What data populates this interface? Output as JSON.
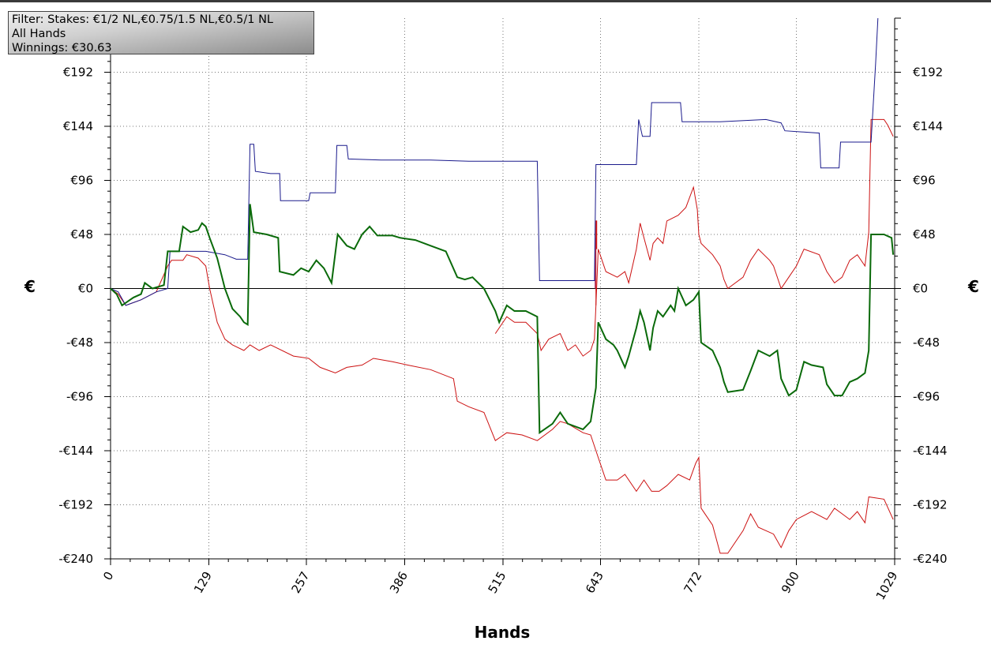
{
  "filter_box": {
    "line1": "Filter: Stakes: €1/2 NL,€0.75/1.5 NL,€0.5/1 NL",
    "line2": "All Hands",
    "line3": "Winnings: €30.63"
  },
  "chart_data": {
    "type": "line",
    "xlabel": "Hands",
    "ylabel": "€",
    "xlim": [
      0,
      1029
    ],
    "ylim": [
      -240,
      240
    ],
    "x_ticks": [
      "0",
      "129",
      "257",
      "386",
      "515",
      "643",
      "772",
      "900",
      "1029"
    ],
    "y_ticks": [
      {
        "value": 192,
        "label": "€192"
      },
      {
        "value": 144,
        "label": "€144"
      },
      {
        "value": 96,
        "label": "€96"
      },
      {
        "value": 48,
        "label": "€48"
      },
      {
        "value": 0,
        "label": "€0"
      },
      {
        "value": -48,
        "label": "-€48"
      },
      {
        "value": -96,
        "label": "-€96"
      },
      {
        "value": -144,
        "label": "-€144"
      },
      {
        "value": -192,
        "label": "-€192"
      },
      {
        "value": -240,
        "label": "-€240"
      }
    ],
    "grid": true,
    "colors": {
      "green": "#0a6a0a",
      "blue": "#1a1a8c",
      "red": "#cc1111",
      "zero": "#000000",
      "grid": "#777777"
    },
    "series": [
      {
        "color": "#1a1a8c",
        "points": [
          [
            0,
            0
          ],
          [
            10,
            -3
          ],
          [
            20,
            -15
          ],
          [
            40,
            -10
          ],
          [
            60,
            -3
          ],
          [
            75,
            0
          ],
          [
            78,
            33
          ],
          [
            100,
            33
          ],
          [
            125,
            33
          ],
          [
            150,
            30
          ],
          [
            165,
            26
          ],
          [
            180,
            26
          ],
          [
            183,
            128
          ],
          [
            188,
            128
          ],
          [
            190,
            104
          ],
          [
            210,
            102
          ],
          [
            222,
            102
          ],
          [
            223,
            78
          ],
          [
            260,
            78
          ],
          [
            262,
            85
          ],
          [
            295,
            85
          ],
          [
            297,
            127
          ],
          [
            310,
            127
          ],
          [
            312,
            115
          ],
          [
            355,
            114
          ],
          [
            420,
            114
          ],
          [
            470,
            113
          ],
          [
            560,
            113
          ],
          [
            563,
            7
          ],
          [
            620,
            7
          ],
          [
            635,
            7
          ],
          [
            637,
            110
          ],
          [
            660,
            110
          ],
          [
            690,
            110
          ],
          [
            693,
            150
          ],
          [
            698,
            135
          ],
          [
            708,
            135
          ],
          [
            710,
            165
          ],
          [
            748,
            165
          ],
          [
            750,
            148
          ],
          [
            800,
            148
          ],
          [
            860,
            150
          ],
          [
            880,
            147
          ],
          [
            885,
            140
          ],
          [
            930,
            138
          ],
          [
            932,
            107
          ],
          [
            956,
            107
          ],
          [
            958,
            130
          ],
          [
            995,
            130
          ],
          [
            998,
            130
          ],
          [
            1004,
            200
          ],
          [
            1007,
            240
          ]
        ]
      },
      {
        "color": "#0a6a0a",
        "points": [
          [
            0,
            0
          ],
          [
            8,
            -5
          ],
          [
            15,
            -15
          ],
          [
            30,
            -8
          ],
          [
            40,
            -5
          ],
          [
            45,
            5
          ],
          [
            55,
            0
          ],
          [
            70,
            3
          ],
          [
            75,
            33
          ],
          [
            90,
            33
          ],
          [
            95,
            55
          ],
          [
            105,
            50
          ],
          [
            115,
            52
          ],
          [
            120,
            58
          ],
          [
            125,
            55
          ],
          [
            130,
            45
          ],
          [
            140,
            27
          ],
          [
            150,
            0
          ],
          [
            160,
            -18
          ],
          [
            170,
            -25
          ],
          [
            175,
            -30
          ],
          [
            180,
            -32
          ],
          [
            183,
            75
          ],
          [
            188,
            50
          ],
          [
            205,
            48
          ],
          [
            220,
            45
          ],
          [
            222,
            15
          ],
          [
            240,
            12
          ],
          [
            250,
            18
          ],
          [
            260,
            15
          ],
          [
            270,
            25
          ],
          [
            280,
            18
          ],
          [
            290,
            5
          ],
          [
            298,
            48
          ],
          [
            310,
            38
          ],
          [
            320,
            35
          ],
          [
            330,
            48
          ],
          [
            340,
            55
          ],
          [
            350,
            47
          ],
          [
            370,
            47
          ],
          [
            380,
            45
          ],
          [
            400,
            43
          ],
          [
            420,
            38
          ],
          [
            440,
            33
          ],
          [
            455,
            10
          ],
          [
            465,
            8
          ],
          [
            475,
            10
          ],
          [
            490,
            0
          ],
          [
            505,
            -20
          ],
          [
            510,
            -30
          ],
          [
            520,
            -15
          ],
          [
            530,
            -20
          ],
          [
            545,
            -20
          ],
          [
            560,
            -25
          ],
          [
            563,
            -128
          ],
          [
            580,
            -120
          ],
          [
            590,
            -110
          ],
          [
            600,
            -120
          ],
          [
            620,
            -125
          ],
          [
            630,
            -118
          ],
          [
            637,
            -88
          ],
          [
            640,
            -30
          ],
          [
            650,
            -45
          ],
          [
            660,
            -50
          ],
          [
            665,
            -55
          ],
          [
            675,
            -70
          ],
          [
            680,
            -60
          ],
          [
            690,
            -35
          ],
          [
            695,
            -20
          ],
          [
            700,
            -30
          ],
          [
            708,
            -55
          ],
          [
            712,
            -35
          ],
          [
            718,
            -20
          ],
          [
            725,
            -25
          ],
          [
            735,
            -15
          ],
          [
            740,
            -20
          ],
          [
            745,
            0
          ],
          [
            755,
            -15
          ],
          [
            765,
            -10
          ],
          [
            770,
            -5
          ],
          [
            772,
            -3
          ],
          [
            775,
            -48
          ],
          [
            790,
            -55
          ],
          [
            800,
            -70
          ],
          [
            805,
            -83
          ],
          [
            810,
            -92
          ],
          [
            830,
            -90
          ],
          [
            840,
            -73
          ],
          [
            850,
            -55
          ],
          [
            865,
            -60
          ],
          [
            875,
            -55
          ],
          [
            880,
            -80
          ],
          [
            890,
            -95
          ],
          [
            900,
            -90
          ],
          [
            910,
            -65
          ],
          [
            920,
            -68
          ],
          [
            935,
            -70
          ],
          [
            940,
            -85
          ],
          [
            950,
            -95
          ],
          [
            960,
            -95
          ],
          [
            970,
            -83
          ],
          [
            980,
            -80
          ],
          [
            990,
            -75
          ],
          [
            995,
            -55
          ],
          [
            998,
            48
          ],
          [
            1015,
            48
          ],
          [
            1025,
            45
          ],
          [
            1027,
            30
          ]
        ]
      },
      {
        "color": "#cc1111",
        "points": [
          [
            0,
            0
          ],
          [
            10,
            -5
          ],
          [
            20,
            -15
          ],
          [
            40,
            -10
          ],
          [
            60,
            -3
          ],
          [
            75,
            20
          ],
          [
            80,
            25
          ],
          [
            95,
            25
          ],
          [
            100,
            30
          ],
          [
            115,
            27
          ],
          [
            125,
            20
          ],
          [
            130,
            0
          ],
          [
            140,
            -30
          ],
          [
            150,
            -45
          ],
          [
            160,
            -50
          ],
          [
            175,
            -55
          ],
          [
            183,
            -50
          ],
          [
            195,
            -55
          ],
          [
            210,
            -50
          ],
          [
            240,
            -60
          ],
          [
            260,
            -62
          ],
          [
            275,
            -70
          ],
          [
            295,
            -75
          ],
          [
            310,
            -70
          ],
          [
            330,
            -68
          ],
          [
            345,
            -62
          ],
          [
            370,
            -65
          ],
          [
            390,
            -68
          ],
          [
            420,
            -72
          ],
          [
            450,
            -80
          ],
          [
            455,
            -100
          ],
          [
            470,
            -105
          ],
          [
            490,
            -110
          ],
          [
            505,
            -135
          ],
          [
            520,
            -128
          ],
          [
            540,
            -130
          ],
          [
            560,
            -135
          ],
          [
            580,
            -125
          ],
          [
            590,
            -118
          ],
          [
            600,
            -120
          ],
          [
            620,
            -128
          ],
          [
            630,
            -130
          ],
          [
            640,
            -150
          ],
          [
            650,
            -170
          ],
          [
            665,
            -170
          ],
          [
            675,
            -165
          ],
          [
            690,
            -180
          ],
          [
            700,
            -170
          ],
          [
            710,
            -180
          ],
          [
            720,
            -180
          ],
          [
            730,
            -175
          ],
          [
            745,
            -165
          ],
          [
            760,
            -170
          ],
          [
            768,
            -155
          ],
          [
            772,
            -150
          ],
          [
            775,
            -195
          ],
          [
            790,
            -210
          ],
          [
            800,
            -235
          ],
          [
            810,
            -235
          ],
          [
            830,
            -215
          ],
          [
            840,
            -200
          ],
          [
            850,
            -212
          ],
          [
            870,
            -218
          ],
          [
            880,
            -230
          ],
          [
            890,
            -215
          ],
          [
            900,
            -205
          ],
          [
            920,
            -198
          ],
          [
            940,
            -205
          ],
          [
            950,
            -195
          ],
          [
            960,
            -200
          ],
          [
            970,
            -205
          ],
          [
            980,
            -198
          ],
          [
            990,
            -208
          ],
          [
            995,
            -185
          ],
          [
            1015,
            -187
          ],
          [
            1027,
            -205
          ]
        ]
      },
      {
        "color": "#cc1111",
        "points": [
          [
            505,
            -40
          ],
          [
            520,
            -25
          ],
          [
            530,
            -30
          ],
          [
            545,
            -30
          ],
          [
            560,
            -40
          ],
          [
            565,
            -55
          ],
          [
            575,
            -45
          ],
          [
            590,
            -40
          ],
          [
            600,
            -55
          ],
          [
            610,
            -50
          ],
          [
            620,
            -60
          ],
          [
            630,
            -55
          ],
          [
            635,
            -45
          ],
          [
            637,
            -15
          ],
          [
            640,
            35
          ],
          [
            650,
            15
          ],
          [
            665,
            10
          ],
          [
            675,
            15
          ],
          [
            680,
            5
          ],
          [
            690,
            35
          ],
          [
            695,
            58
          ],
          [
            700,
            45
          ],
          [
            708,
            25
          ],
          [
            712,
            40
          ],
          [
            718,
            45
          ],
          [
            725,
            40
          ],
          [
            730,
            60
          ],
          [
            745,
            65
          ],
          [
            755,
            72
          ],
          [
            765,
            90
          ],
          [
            770,
            70
          ],
          [
            772,
            48
          ],
          [
            775,
            40
          ],
          [
            790,
            30
          ],
          [
            800,
            20
          ],
          [
            805,
            8
          ],
          [
            810,
            0
          ],
          [
            830,
            10
          ],
          [
            840,
            25
          ],
          [
            850,
            35
          ],
          [
            865,
            25
          ],
          [
            870,
            20
          ],
          [
            880,
            0
          ],
          [
            890,
            10
          ],
          [
            900,
            20
          ],
          [
            910,
            35
          ],
          [
            930,
            30
          ],
          [
            940,
            15
          ],
          [
            950,
            5
          ],
          [
            960,
            10
          ],
          [
            970,
            25
          ],
          [
            980,
            30
          ],
          [
            990,
            20
          ],
          [
            995,
            50
          ],
          [
            998,
            150
          ],
          [
            1015,
            150
          ],
          [
            1020,
            145
          ],
          [
            1027,
            135
          ]
        ]
      },
      {
        "color": "#cc1111",
        "points": [
          [
            637,
            -15
          ],
          [
            637,
            60
          ],
          [
            638,
            60
          ],
          [
            638,
            35
          ]
        ]
      },
      {
        "color": "#9a1a5a",
        "points": [
          [
            636,
            0
          ],
          [
            636,
            45
          ]
        ]
      }
    ]
  }
}
